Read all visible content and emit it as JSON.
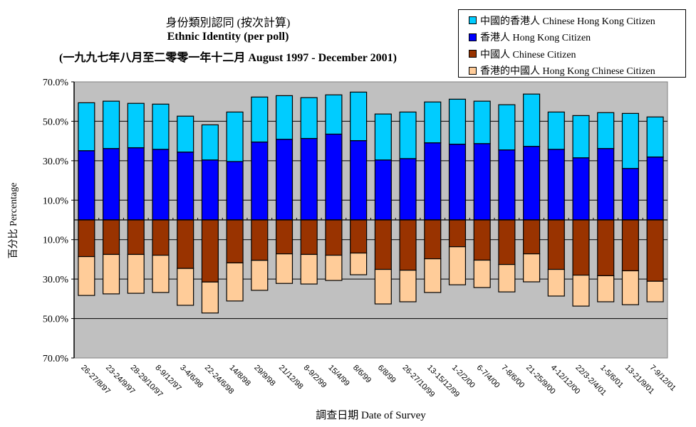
{
  "chart_data": {
    "type": "bar",
    "stacked": "diverging",
    "title": "身份類別認同 (按次計算)",
    "subtitle": "Ethnic Identity (per poll)",
    "date_range": "(一九九七年八月至二零零一年十二月 August 1997 - December 2001)",
    "xlabel": "調查日期 Date of Survey",
    "ylabel": "百分比 Percentage",
    "ylim": [
      -70,
      70
    ],
    "yticks": [
      70,
      50,
      30,
      10,
      -10,
      -30,
      -50,
      -70
    ],
    "ytick_labels": [
      "70.0%",
      "50.0%",
      "30.0%",
      "10.0%",
      "10.0%",
      "30.0%",
      "50.0%",
      "70.0%"
    ],
    "grid": true,
    "legend_position": "top-right",
    "categories": [
      "26-27/8/97",
      "23-24/9/97",
      "28-29/10/97",
      "8-9/12/97",
      "3-4/6/98",
      "22-24/6/98",
      "14/8/98",
      "29/9/98",
      "21/12/98",
      "8-9/2/99",
      "15/4/99",
      "8/6/99",
      "6/8/99",
      "26-27/10/99",
      "13-15/12/99",
      "1-2/2/00",
      "6-7/4/00",
      "7-8/6/00",
      "21-25/9/00",
      "4-12/12/00",
      "22/3-2/4/01",
      "1-5/6/01",
      "13-21/9/01",
      "7-9/12/01"
    ],
    "series": [
      {
        "name": "香港人 Hong Kong Citizen",
        "direction": "up",
        "color": "#0000ff",
        "values": [
          35.1,
          36.2,
          36.6,
          35.8,
          34.4,
          30.4,
          29.6,
          39.5,
          40.9,
          41.3,
          43.5,
          40.2,
          30.4,
          31.1,
          39.1,
          38.4,
          38.7,
          35.5,
          37.3,
          35.8,
          31.5,
          36.2,
          26.1,
          31.9
        ]
      },
      {
        "name": "中國的香港人 Chinese Hong Kong Citizen",
        "direction": "up",
        "color": "#00ccff",
        "values": [
          24.3,
          24.0,
          22.5,
          22.9,
          18.2,
          17.8,
          25.1,
          22.8,
          22.1,
          20.7,
          19.9,
          24.6,
          23.3,
          23.6,
          20.7,
          22.8,
          21.5,
          22.9,
          26.5,
          18.9,
          21.4,
          18.2,
          27.9,
          20.3
        ]
      },
      {
        "name": "中國人 Chinese Citizen",
        "direction": "down",
        "color": "#993300",
        "values": [
          18.6,
          17.5,
          17.5,
          17.9,
          24.6,
          31.5,
          21.8,
          20.5,
          17.2,
          17.5,
          17.9,
          16.8,
          25.1,
          25.5,
          19.7,
          13.6,
          20.4,
          22.6,
          17.2,
          25.1,
          28.0,
          28.3,
          25.8,
          31.1
        ]
      },
      {
        "name": "香港的中國人 Hong Kong Chinese Citizen",
        "direction": "down",
        "color": "#ffcc99",
        "values": [
          19.7,
          20.0,
          19.7,
          18.9,
          18.7,
          15.7,
          19.3,
          15.2,
          15.0,
          15.0,
          12.8,
          11.0,
          17.5,
          16.0,
          17.1,
          19.3,
          13.9,
          13.9,
          14.2,
          13.5,
          15.7,
          13.2,
          17.2,
          10.4
        ]
      }
    ],
    "legend": [
      {
        "label": "中國的香港人 Chinese Hong Kong Citizen",
        "color": "#00ccff"
      },
      {
        "label": "香港人 Hong Kong Citizen",
        "color": "#0000ff"
      },
      {
        "label": "中國人 Chinese Citizen",
        "color": "#993300"
      },
      {
        "label": "香港的中國人 Hong Kong Chinese Citizen",
        "color": "#ffcc99"
      }
    ]
  },
  "colors": {
    "plot_background": "#c0c0c0",
    "gridline": "#000000"
  }
}
